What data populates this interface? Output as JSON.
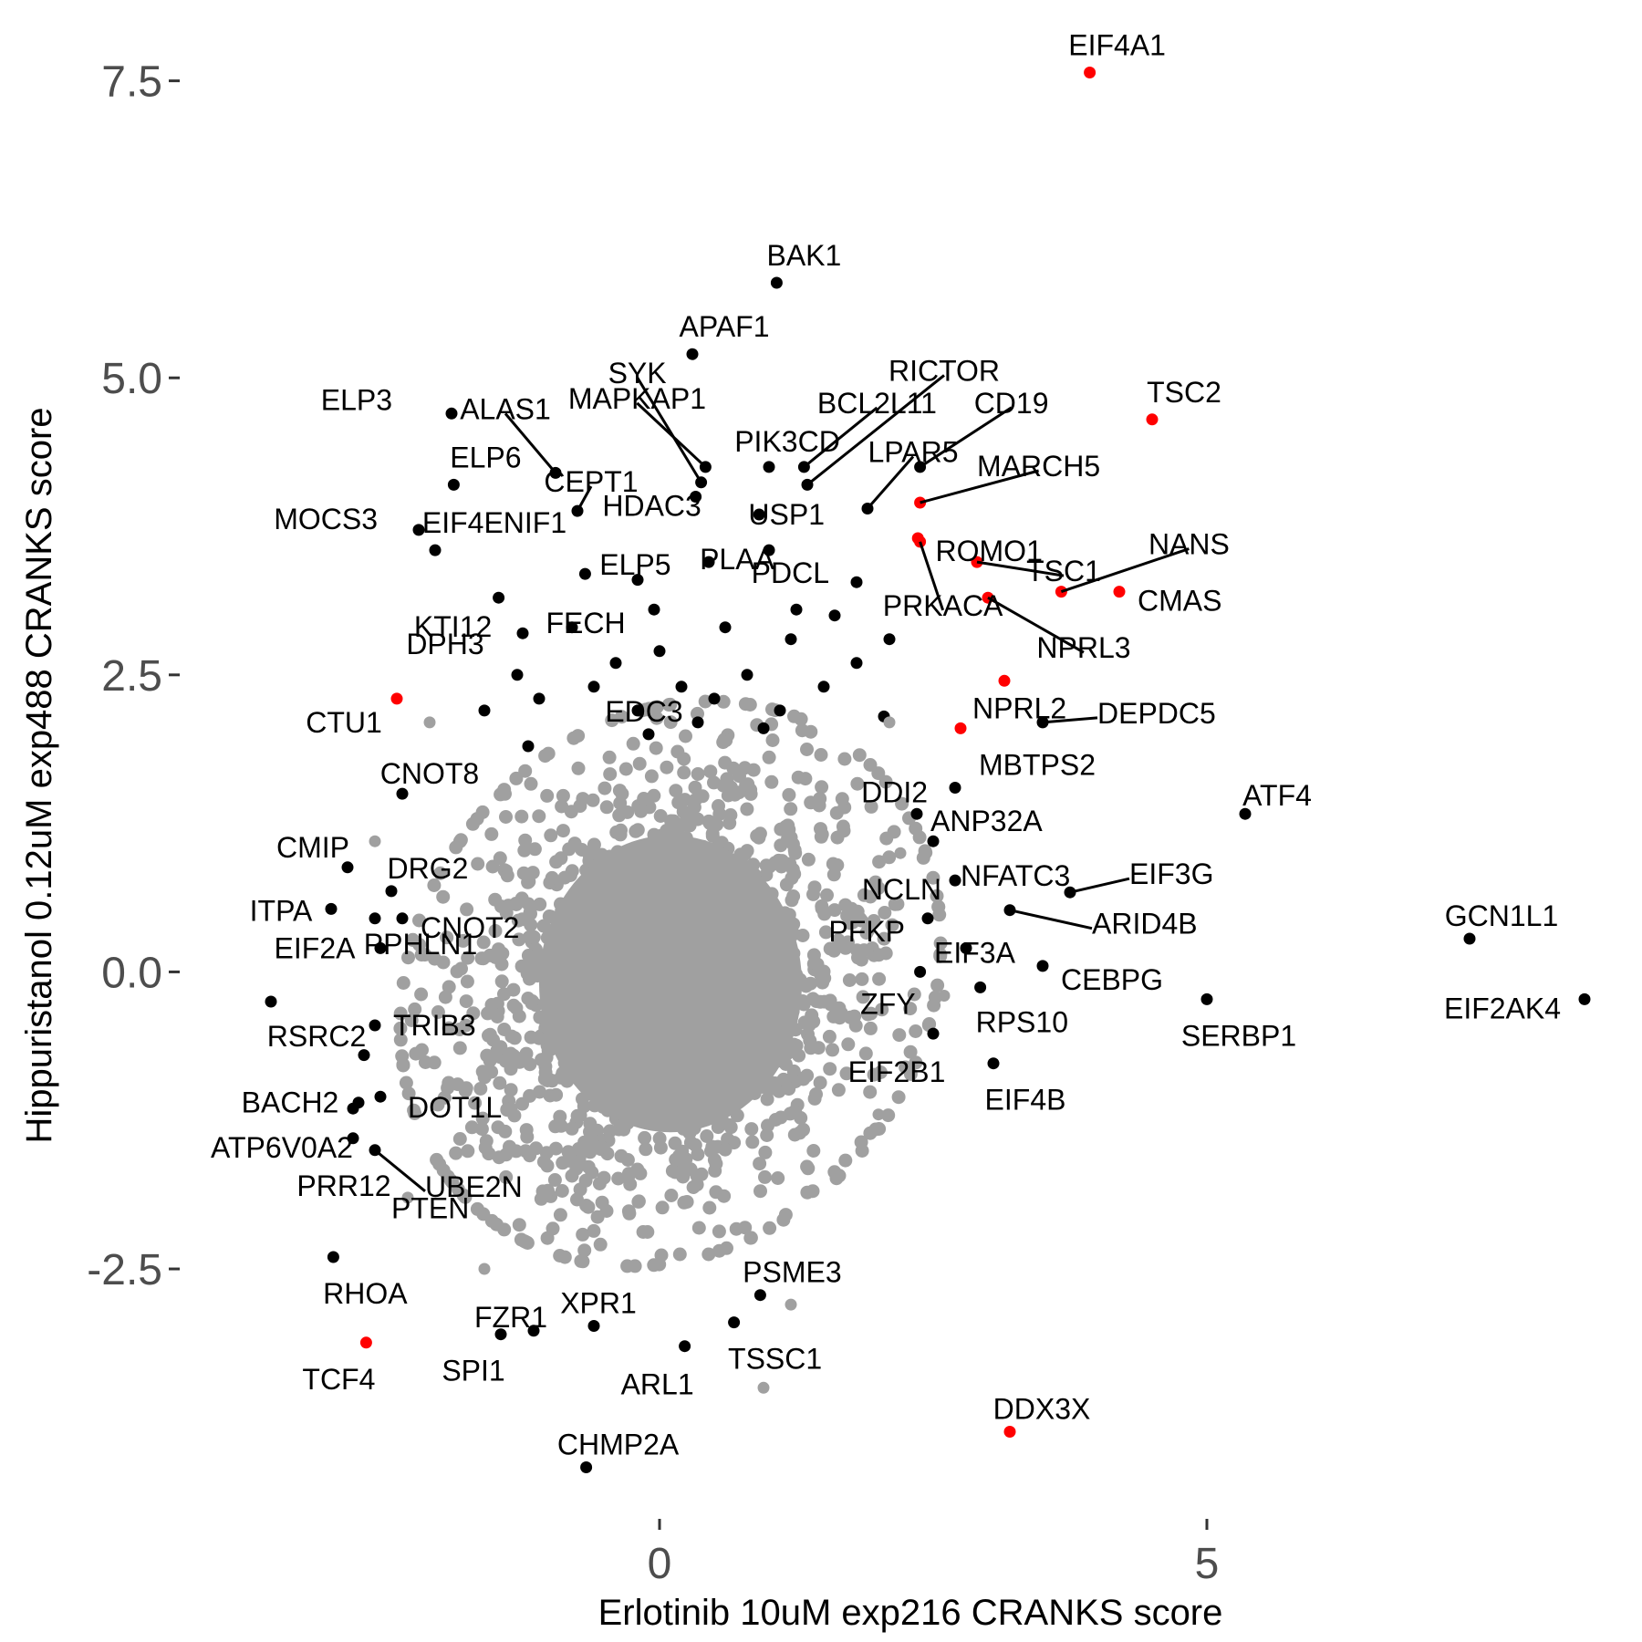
{
  "chart_data": {
    "type": "scatter",
    "xlabel": "Erlotinib 10uM exp216 CRANKS score",
    "ylabel": "Hippuristanol 0.12uM exp488 CRANKS score",
    "xlim": [
      -4.4,
      8.6
    ],
    "ylim": [
      -4.45,
      7.95
    ],
    "grid": false,
    "legend": "none",
    "colors": {
      "background_genes": "#a0a0a0",
      "labeled_genes": "#000000",
      "highlighted_genes": "#ff0000"
    },
    "x_ticks": [
      {
        "value": 0,
        "label": "0"
      },
      {
        "value": 5,
        "label": "5"
      }
    ],
    "y_ticks": [
      {
        "value": -2.5,
        "label": "-2.5"
      },
      {
        "value": 0,
        "label": "0.0"
      },
      {
        "value": 2.5,
        "label": "2.5"
      },
      {
        "value": 5,
        "label": "5.0"
      },
      {
        "value": 7.5,
        "label": "7.5"
      }
    ],
    "background_cloud": {
      "center": [
        0.1,
        -0.1
      ],
      "sd": [
        1.05,
        1.0
      ],
      "n": 1600
    },
    "labeled_points": [
      {
        "name": "EIF4A1",
        "x": 3.93,
        "y": 7.57,
        "color": "red"
      },
      {
        "name": "BAK1",
        "x": 1.07,
        "y": 5.8,
        "color": "black"
      },
      {
        "name": "APAF1",
        "x": 0.3,
        "y": 5.2,
        "color": "black"
      },
      {
        "name": "TSC2",
        "x": 4.5,
        "y": 4.65,
        "color": "red"
      },
      {
        "name": "ELP3",
        "x": -1.9,
        "y": 4.7,
        "color": "black"
      },
      {
        "name": "ELP6",
        "x": -1.88,
        "y": 4.1,
        "color": "black"
      },
      {
        "name": "ALAS1",
        "x": -0.95,
        "y": 4.2,
        "color": "black"
      },
      {
        "name": "CEPT1",
        "x": -0.75,
        "y": 3.88,
        "color": "black"
      },
      {
        "name": "SYK",
        "x": 0.38,
        "y": 4.12,
        "color": "black"
      },
      {
        "name": "MAPKAP1",
        "x": 0.42,
        "y": 4.25,
        "color": "black"
      },
      {
        "name": "BCL2L11",
        "x": 1.32,
        "y": 4.25,
        "color": "black"
      },
      {
        "name": "RICTOR",
        "x": 1.35,
        "y": 4.1,
        "color": "black"
      },
      {
        "name": "PIK3CD",
        "x": 1.0,
        "y": 4.25,
        "color": "black"
      },
      {
        "name": "LPAR5",
        "x": 1.9,
        "y": 3.9,
        "color": "black"
      },
      {
        "name": "CD19",
        "x": 2.38,
        "y": 4.25,
        "color": "black"
      },
      {
        "name": "HDAC3",
        "x": 0.33,
        "y": 4.0,
        "color": "black"
      },
      {
        "name": "USP1",
        "x": 0.91,
        "y": 3.85,
        "color": "black"
      },
      {
        "name": "MARCH5",
        "x": 2.38,
        "y": 3.95,
        "color": "red"
      },
      {
        "name": "ROMO1",
        "x": 2.36,
        "y": 3.65,
        "color": "red"
      },
      {
        "name": "MOCS3",
        "x": -2.2,
        "y": 3.72,
        "color": "black"
      },
      {
        "name": "EIF4ENIF1",
        "x": -2.05,
        "y": 3.55,
        "color": "black"
      },
      {
        "name": "ELP5",
        "x": -0.68,
        "y": 3.35,
        "color": "black"
      },
      {
        "name": "PLAA",
        "x": 1.0,
        "y": 3.55,
        "color": "black"
      },
      {
        "name": "PDCL",
        "x": 1.8,
        "y": 3.28,
        "color": "black"
      },
      {
        "name": "PRKACA",
        "x": 2.38,
        "y": 3.62,
        "color": "red"
      },
      {
        "name": "TSC1",
        "x": 2.9,
        "y": 3.45,
        "color": "red"
      },
      {
        "name": "NANS",
        "x": 3.67,
        "y": 3.2,
        "color": "red"
      },
      {
        "name": "CMAS",
        "x": 4.2,
        "y": 3.2,
        "color": "red"
      },
      {
        "name": "NPRL3",
        "x": 3.0,
        "y": 3.15,
        "color": "red"
      },
      {
        "name": "KTI12",
        "x": -1.47,
        "y": 3.15,
        "color": "black"
      },
      {
        "name": "FECH",
        "x": -0.05,
        "y": 3.05,
        "color": "black"
      },
      {
        "name": "DPH3",
        "x": -1.25,
        "y": 2.85,
        "color": "black"
      },
      {
        "name": "CTU1",
        "x": -2.4,
        "y": 2.3,
        "color": "red"
      },
      {
        "name": "NPRL2",
        "x": 3.15,
        "y": 2.45,
        "color": "red"
      },
      {
        "name": "DEPDC5",
        "x": 3.5,
        "y": 2.1,
        "color": "black"
      },
      {
        "name": "MBTPS2",
        "x": 2.75,
        "y": 2.05,
        "color": "red"
      },
      {
        "name": "CNOT8",
        "x": -2.35,
        "y": 1.5,
        "color": "black"
      },
      {
        "name": "EDC3",
        "x": -0.1,
        "y": 2.0,
        "color": "black"
      },
      {
        "name": "DDI2",
        "x": 2.7,
        "y": 1.55,
        "color": "black"
      },
      {
        "name": "ANP32A",
        "x": 2.35,
        "y": 1.33,
        "color": "black"
      },
      {
        "name": "ATF4",
        "x": 5.35,
        "y": 1.33,
        "color": "black"
      },
      {
        "name": "CMIP",
        "x": -2.85,
        "y": 0.88,
        "color": "black"
      },
      {
        "name": "DRG2",
        "x": -2.45,
        "y": 0.68,
        "color": "black"
      },
      {
        "name": "NFATC3",
        "x": 2.5,
        "y": 1.1,
        "color": "black"
      },
      {
        "name": "EIF3G",
        "x": 3.75,
        "y": 0.67,
        "color": "black"
      },
      {
        "name": "NCLN",
        "x": 2.7,
        "y": 0.77,
        "color": "black"
      },
      {
        "name": "ITPA",
        "x": -3.0,
        "y": 0.53,
        "color": "black"
      },
      {
        "name": "CNOT2",
        "x": -2.35,
        "y": 0.45,
        "color": "black"
      },
      {
        "name": "ARID4B",
        "x": 3.2,
        "y": 0.52,
        "color": "black"
      },
      {
        "name": "GCN1L1",
        "x": 7.4,
        "y": 0.28,
        "color": "black"
      },
      {
        "name": "EIF2A",
        "x": -2.55,
        "y": 0.2,
        "color": "black"
      },
      {
        "name": "PFKP",
        "x": 2.45,
        "y": 0.45,
        "color": "black"
      },
      {
        "name": "EIF3A",
        "x": 2.8,
        "y": 0.2,
        "color": "black"
      },
      {
        "name": "PPHLN1",
        "x": -2.6,
        "y": 0.45,
        "color": "black"
      },
      {
        "name": "CEBPG",
        "x": 3.5,
        "y": 0.05,
        "color": "black"
      },
      {
        "name": "ZFY",
        "x": 2.38,
        "y": 0.0,
        "color": "black"
      },
      {
        "name": "RSRC2",
        "x": -3.55,
        "y": -0.25,
        "color": "black"
      },
      {
        "name": "TRIB3",
        "x": -2.6,
        "y": -0.45,
        "color": "black"
      },
      {
        "name": "RPS10",
        "x": 2.93,
        "y": -0.13,
        "color": "black"
      },
      {
        "name": "SERBP1",
        "x": 5.0,
        "y": -0.23,
        "color": "black"
      },
      {
        "name": "EIF2AK4",
        "x": 8.45,
        "y": -0.23,
        "color": "black"
      },
      {
        "name": "EIF2B1",
        "x": 2.5,
        "y": -0.52,
        "color": "black"
      },
      {
        "name": "DOT1L",
        "x": -2.55,
        "y": -1.05,
        "color": "black"
      },
      {
        "name": "EIF4B",
        "x": 3.05,
        "y": -0.77,
        "color": "black"
      },
      {
        "name": "BACH2",
        "x": -2.75,
        "y": -1.1,
        "color": "black"
      },
      {
        "name": "PTEN",
        "x": -2.7,
        "y": -0.7,
        "color": "black"
      },
      {
        "name": "ATP6V0A2",
        "x": -2.8,
        "y": -1.4,
        "color": "black"
      },
      {
        "name": "UBE2N",
        "x": -2.6,
        "y": -1.5,
        "color": "black"
      },
      {
        "name": "PRR12",
        "x": -2.8,
        "y": -1.15,
        "color": "black"
      },
      {
        "name": "RHOA",
        "x": -2.98,
        "y": -2.4,
        "color": "black"
      },
      {
        "name": "PSME3",
        "x": 0.92,
        "y": -2.72,
        "color": "black"
      },
      {
        "name": "FZR1",
        "x": -1.15,
        "y": -3.02,
        "color": "black"
      },
      {
        "name": "XPR1",
        "x": -0.6,
        "y": -2.98,
        "color": "black"
      },
      {
        "name": "SPI1",
        "x": -1.45,
        "y": -3.05,
        "color": "black"
      },
      {
        "name": "TSSC1",
        "x": 0.68,
        "y": -2.95,
        "color": "black"
      },
      {
        "name": "TCF4",
        "x": -2.68,
        "y": -3.12,
        "color": "red"
      },
      {
        "name": "ARL1",
        "x": 0.23,
        "y": -3.15,
        "color": "black"
      },
      {
        "name": "DDX3X",
        "x": 3.2,
        "y": -3.87,
        "color": "red"
      },
      {
        "name": "CHMP2A",
        "x": -0.67,
        "y": -4.17,
        "color": "black"
      }
    ],
    "extra_points": [
      {
        "x": -0.2,
        "y": 2.2,
        "color": "black"
      },
      {
        "x": -0.6,
        "y": 2.4,
        "color": "black"
      },
      {
        "x": -1.1,
        "y": 2.3,
        "color": "black"
      },
      {
        "x": -1.3,
        "y": 2.5,
        "color": "black"
      },
      {
        "x": -0.4,
        "y": 2.6,
        "color": "black"
      },
      {
        "x": 0.2,
        "y": 2.4,
        "color": "black"
      },
      {
        "x": 0.5,
        "y": 2.3,
        "color": "black"
      },
      {
        "x": 0.8,
        "y": 2.5,
        "color": "black"
      },
      {
        "x": 1.1,
        "y": 2.2,
        "color": "black"
      },
      {
        "x": 1.5,
        "y": 2.4,
        "color": "black"
      },
      {
        "x": 1.8,
        "y": 2.6,
        "color": "black"
      },
      {
        "x": 2.1,
        "y": 2.8,
        "color": "black"
      },
      {
        "x": -0.8,
        "y": 2.9,
        "color": "black"
      },
      {
        "x": 0.0,
        "y": 2.7,
        "color": "black"
      },
      {
        "x": 0.6,
        "y": 2.9,
        "color": "black"
      },
      {
        "x": 1.2,
        "y": 2.8,
        "color": "black"
      },
      {
        "x": 1.6,
        "y": 3.0,
        "color": "black"
      },
      {
        "x": -1.6,
        "y": 2.2,
        "color": "black"
      },
      {
        "x": -1.2,
        "y": 1.9,
        "color": "black"
      },
      {
        "x": -0.2,
        "y": 3.3,
        "color": "black"
      },
      {
        "x": 0.45,
        "y": 3.45,
        "color": "black"
      },
      {
        "x": 1.25,
        "y": 3.05,
        "color": "black"
      },
      {
        "x": 0.35,
        "y": 2.1,
        "color": "black"
      },
      {
        "x": 0.95,
        "y": 2.05,
        "color": "black"
      },
      {
        "x": 2.05,
        "y": 2.15,
        "color": "black"
      },
      {
        "x": -2.1,
        "y": 2.1,
        "color": "gray"
      },
      {
        "x": -2.6,
        "y": 1.1,
        "color": "gray"
      },
      {
        "x": 2.2,
        "y": 1.0,
        "color": "gray"
      },
      {
        "x": 2.6,
        "y": -0.2,
        "color": "gray"
      },
      {
        "x": 2.0,
        "y": -1.2,
        "color": "gray"
      },
      {
        "x": -2.3,
        "y": -1.9,
        "color": "gray"
      },
      {
        "x": -1.6,
        "y": -2.5,
        "color": "gray"
      },
      {
        "x": 1.2,
        "y": -2.8,
        "color": "gray"
      },
      {
        "x": 0.95,
        "y": -3.5,
        "color": "gray"
      },
      {
        "x": 2.1,
        "y": 2.1,
        "color": "gray"
      }
    ]
  }
}
